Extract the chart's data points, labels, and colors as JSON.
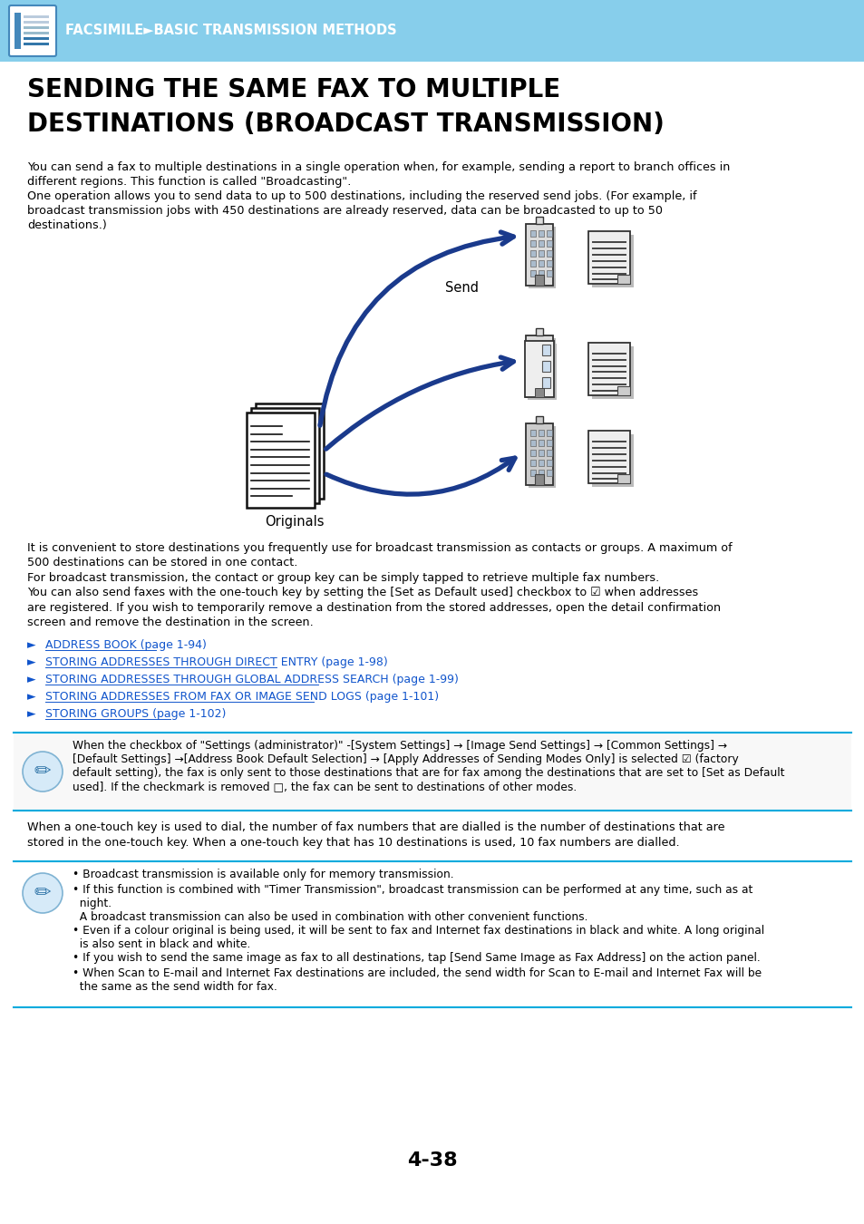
{
  "header_bg": "#87CEEB",
  "header_text": "FACSIMILE►BASIC TRANSMISSION METHODS",
  "header_text_color": "#FFFFFF",
  "page_bg": "#FFFFFF",
  "title_line1": "SENDING THE SAME FAX TO MULTIPLE",
  "title_line2": "DESTINATIONS (BROADCAST TRANSMISSION)",
  "title_color": "#000000",
  "body_text_1": "You can send a fax to multiple destinations in a single operation when, for example, sending a report to branch offices in\ndifferent regions. This function is called \"Broadcasting\".\nOne operation allows you to send data to up to 500 destinations, including the reserved send jobs. (For example, if\nbroadcast transmission jobs with 450 destinations are already reserved, data can be broadcasted to up to 50\ndestinations.)",
  "body_text_2_lines": [
    "It is convenient to store destinations you frequently use for broadcast transmission as contacts or groups. A maximum of",
    "500 destinations can be stored in one contact.",
    "For broadcast transmission, the contact or group key can be simply tapped to retrieve multiple fax numbers.",
    "You can also send faxes with the one-touch key by setting the [Set as Default used] checkbox to ☑ when addresses",
    "are registered. If you wish to temporarily remove a destination from the stored addresses, open the detail confirmation",
    "screen and remove the destination in the screen."
  ],
  "link_color": "#1155CC",
  "links": [
    "ADDRESS BOOK (page 1-94)",
    "STORING ADDRESSES THROUGH DIRECT ENTRY (page 1-98)",
    "STORING ADDRESSES THROUGH GLOBAL ADDRESS SEARCH (page 1-99)",
    "STORING ADDRESSES FROM FAX OR IMAGE SEND LOGS (page 1-101)",
    "STORING GROUPS (page 1-102)"
  ],
  "note_box_1_text_lines": [
    "When the checkbox of \"Settings (administrator)\" -[System Settings] → [Image Send Settings] → [Common Settings] →",
    "[Default Settings] →[Address Book Default Selection] → [Apply Addresses of Sending Modes Only] is selected ☑ (factory",
    "default setting), the fax is only sent to those destinations that are for fax among the destinations that are set to [Set as Default",
    "used]. If the checkmark is removed □, the fax can be sent to destinations of other modes."
  ],
  "body_text_3": "When a one-touch key is used to dial, the number of fax numbers that are dialled is the number of destinations that are\nstored in the one-touch key. When a one-touch key that has 10 destinations is used, 10 fax numbers are dialled.",
  "note_box_2_bullets": [
    "• Broadcast transmission is available only for memory transmission.",
    "• If this function is combined with \"Timer Transmission\", broadcast transmission can be performed at any time, such as at\n  night.\n  A broadcast transmission can also be used in combination with other convenient functions.",
    "• Even if a colour original is being used, it will be sent to fax and Internet fax destinations in black and white. A long original\n  is also sent in black and white.",
    "• If you wish to send the same image as fax to all destinations, tap [Send Same Image as Fax Address] on the action panel.",
    "• When Scan to E-mail and Internet Fax destinations are included, the send width for Scan to E-mail and Internet Fax will be\n  the same as the send width for fax."
  ],
  "page_number": "4-38",
  "arrow_color": "#1A3A8C",
  "sep_line_color": "#00AADD",
  "diagram_label_originals": "Originals",
  "diagram_label_send": "Send"
}
